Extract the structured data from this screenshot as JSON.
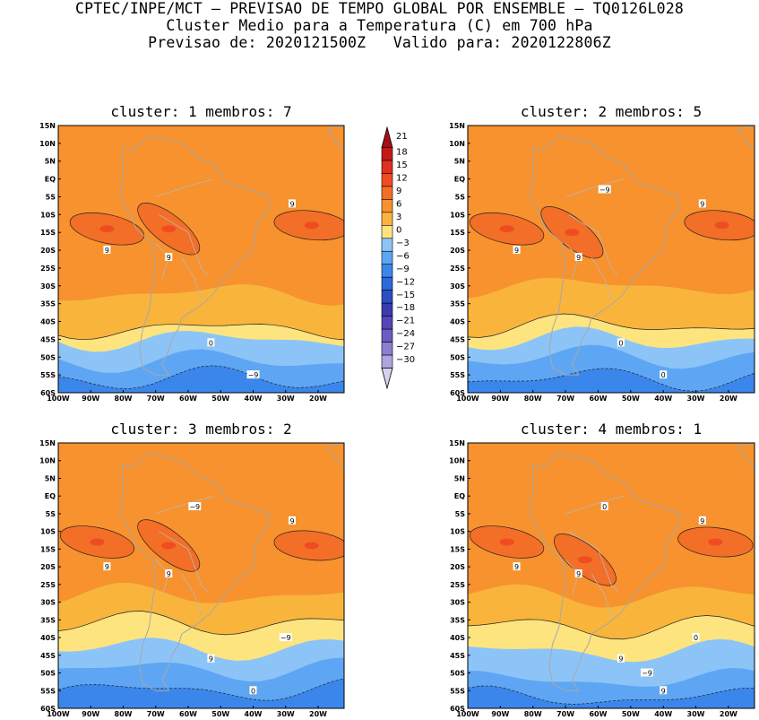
{
  "header": {
    "line1": "CPTEC/INPE/MCT — PREVISAO DE TEMPO GLOBAL POR ENSEMBLE — TQ0126L028",
    "line2": "Cluster Medio para a Temperatura (C) em 700 hPa",
    "line3": "Previsao de: 2020121500Z   Valido para: 2020122806Z"
  },
  "chart_data": {
    "type": "heatmap",
    "variable": "Temperatura (C) em 700 hPa",
    "lat_ticks": [
      "15N",
      "10N",
      "5N",
      "EQ",
      "5S",
      "10S",
      "15S",
      "20S",
      "25S",
      "30S",
      "35S",
      "40S",
      "45S",
      "50S",
      "55S",
      "60S"
    ],
    "lon_ticks": [
      "100W",
      "90W",
      "80W",
      "70W",
      "60W",
      "50W",
      "40W",
      "30W",
      "20W"
    ],
    "lat_range": [
      -60,
      15
    ],
    "lon_range": [
      -100,
      -12
    ],
    "colorbar": {
      "levels": [
        "21",
        "18",
        "15",
        "12",
        "9",
        "6",
        "3",
        "0",
        "−3",
        "−6",
        "−9",
        "−12",
        "−15",
        "−18",
        "−21",
        "−24",
        "−27",
        "−30"
      ],
      "colors": [
        "#a50f15",
        "#c41a17",
        "#e0301e",
        "#f04c22",
        "#f36e27",
        "#f7922e",
        "#f9b43c",
        "#fde47f",
        "#8cc4f7",
        "#5ea6f3",
        "#3b86ea",
        "#2c68d9",
        "#2b4fc2",
        "#3b3bb0",
        "#5446b5",
        "#6a5cc4",
        "#8a7fd3",
        "#ada4e0",
        "#d6d2f0"
      ]
    },
    "clusters": [
      {
        "title": "cluster: 1   membros: 7",
        "cluster": 1,
        "membros": 7,
        "contour_labels": [
          "9",
          "9",
          "9",
          "0",
          "−9"
        ],
        "bands": [
          {
            "temp_c": 6,
            "lat_top": 15
          },
          {
            "temp_c": 3,
            "lat_top": -32
          },
          {
            "temp_c": 0,
            "lat_top": -42
          },
          {
            "temp_c": -3,
            "lat_top": -45
          },
          {
            "temp_c": -6,
            "lat_top": -51
          },
          {
            "temp_c": -9,
            "lat_top": -56
          }
        ],
        "warm_cores": [
          {
            "temp_c": 9,
            "lon": -85,
            "lat": -14
          },
          {
            "temp_c": 9,
            "lon": -66,
            "lat": -14
          },
          {
            "temp_c": 9,
            "lon": -22,
            "lat": -13
          }
        ]
      },
      {
        "title": "cluster: 2   membros: 5",
        "cluster": 2,
        "membros": 5,
        "contour_labels": [
          "9",
          "9",
          "9",
          "0",
          "0",
          "−9"
        ],
        "bands": [
          {
            "temp_c": 6,
            "lat_top": 15
          },
          {
            "temp_c": 3,
            "lat_top": -30
          },
          {
            "temp_c": 0,
            "lat_top": -41
          },
          {
            "temp_c": -3,
            "lat_top": -45
          },
          {
            "temp_c": -6,
            "lat_top": -50
          },
          {
            "temp_c": -9,
            "lat_top": -56
          }
        ],
        "warm_cores": [
          {
            "temp_c": 9,
            "lon": -88,
            "lat": -14
          },
          {
            "temp_c": 9,
            "lon": -68,
            "lat": -15
          },
          {
            "temp_c": 9,
            "lon": -22,
            "lat": -13
          }
        ]
      },
      {
        "title": "cluster: 3   membros: 2",
        "cluster": 3,
        "membros": 2,
        "contour_labels": [
          "9",
          "9",
          "9",
          "9",
          "0",
          "−9",
          "−9"
        ],
        "bands": [
          {
            "temp_c": 6,
            "lat_top": 15
          },
          {
            "temp_c": 3,
            "lat_top": -28
          },
          {
            "temp_c": 0,
            "lat_top": -36
          },
          {
            "temp_c": -3,
            "lat_top": -43
          },
          {
            "temp_c": -6,
            "lat_top": -49
          },
          {
            "temp_c": -9,
            "lat_top": -55
          }
        ],
        "warm_cores": [
          {
            "temp_c": 9,
            "lon": -88,
            "lat": -13
          },
          {
            "temp_c": 9,
            "lon": -66,
            "lat": -14
          },
          {
            "temp_c": 9,
            "lon": -22,
            "lat": -14
          }
        ]
      },
      {
        "title": "cluster: 4   membros: 1",
        "cluster": 4,
        "membros": 1,
        "contour_labels": [
          "9",
          "9",
          "9",
          "9",
          "9",
          "0",
          "0",
          "−9"
        ],
        "bands": [
          {
            "temp_c": 6,
            "lat_top": 15
          },
          {
            "temp_c": 3,
            "lat_top": -28
          },
          {
            "temp_c": 0,
            "lat_top": -37
          },
          {
            "temp_c": -3,
            "lat_top": -44
          },
          {
            "temp_c": -6,
            "lat_top": -52
          },
          {
            "temp_c": -9,
            "lat_top": -57
          }
        ],
        "warm_cores": [
          {
            "temp_c": 9,
            "lon": -88,
            "lat": -13
          },
          {
            "temp_c": 9,
            "lon": -64,
            "lat": -18
          },
          {
            "temp_c": 9,
            "lon": -24,
            "lat": -13
          }
        ]
      }
    ]
  }
}
